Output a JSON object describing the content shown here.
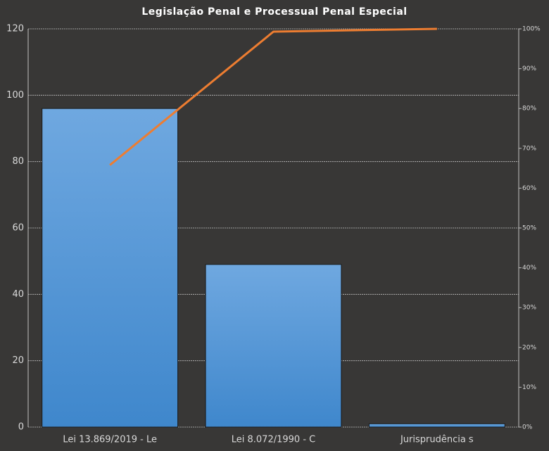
{
  "chart_data": {
    "type": "bar",
    "title": "Legislação Penal e Processual Penal Especial",
    "categories": [
      "Lei 13.869/2019 - Le",
      "Lei 8.072/1990 - C",
      "Jurisprudência s"
    ],
    "series": [
      {
        "type": "bar",
        "color": "#5b9bd5",
        "values": [
          96,
          49,
          1
        ]
      },
      {
        "type": "line",
        "color": "#ed7d31",
        "axis": "y2",
        "values": [
          65.8,
          99.3,
          100
        ]
      }
    ],
    "ylim": [
      0,
      120
    ],
    "yticks": [
      0,
      20,
      40,
      60,
      80,
      100,
      120
    ],
    "y2lim": [
      0,
      100
    ],
    "y2ticks": [
      {
        "value": 0,
        "label": "0%"
      },
      {
        "value": 10,
        "label": "10%"
      },
      {
        "value": 20,
        "label": "20%"
      },
      {
        "value": 30,
        "label": "30%"
      },
      {
        "value": 40,
        "label": "40%"
      },
      {
        "value": 50,
        "label": "50%"
      },
      {
        "value": 60,
        "label": "60%"
      },
      {
        "value": 70,
        "label": "70%"
      },
      {
        "value": 80,
        "label": "80%"
      },
      {
        "value": 90,
        "label": "90%"
      },
      {
        "value": 100,
        "label": "100%"
      }
    ],
    "grid": true
  }
}
